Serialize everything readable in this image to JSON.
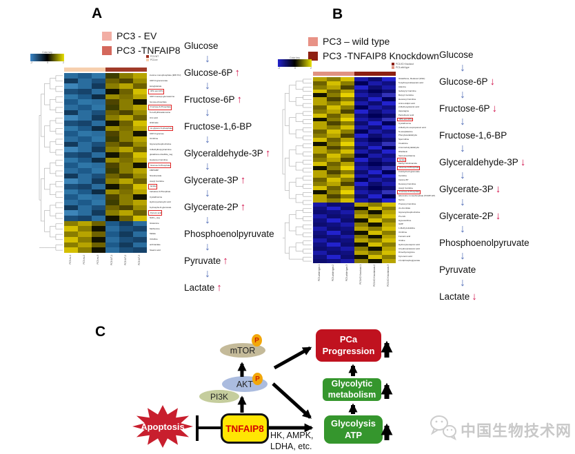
{
  "panelA": {
    "letter": "A",
    "legend": [
      {
        "color": "#f2aea4",
        "label": "PC3 - EV"
      },
      {
        "color": "#d4685c",
        "label": "PC3 -TNFAIP8"
      }
    ],
    "color_key": {
      "title": "Color key",
      "ticks": [
        "-2",
        "0",
        "2"
      ],
      "gradient": [
        "#3a86c8",
        "#000000",
        "#e8e000"
      ]
    },
    "mini_legend": [
      {
        "color": "#9e3020",
        "label": "PC3-WT"
      },
      {
        "color": "#f6cfae",
        "label": "PC3-ev"
      }
    ],
    "column_band": [
      "#f6cfae",
      "#a03a28"
    ],
    "column_labels": [
      "PC3-ev-1",
      "PC3-ev-2",
      "PC3-ev-3",
      "PC3-WT-1",
      "PC3-WT-2",
      "PC3-WT-3"
    ],
    "palettes": {
      "a1": [
        "#2a6d9e",
        "#1d5a8a",
        "#2f77a8",
        "#3d3d00",
        "#8a7d00",
        "#b7a400"
      ],
      "a2": [
        "#123a5c",
        "#2a6d9e",
        "#1b4f7a",
        "#6e6200",
        "#4d4400",
        "#9a8c00"
      ],
      "a3": [
        "#3d85b8",
        "#2a6d9e",
        "#123a5c",
        "#8a7d00",
        "#b7a400",
        "#6e6200"
      ],
      "a4": [
        "#1b4f7a",
        "#16436b",
        "#2a6d9e",
        "#141400",
        "#6e6200",
        "#d4bf00"
      ],
      "a5": [
        "#2f77a8",
        "#1d5a8a",
        "#0d2c45",
        "#9a8c00",
        "#7d7000",
        "#b7a400"
      ],
      "a6": [
        "#1d5a8a",
        "#2f77a8",
        "#2a6d9e",
        "#4d4400",
        "#8a7d00",
        "#141400"
      ],
      "a7": [
        "#8a7d00",
        "#b7a400",
        "#6e6200",
        "#1d5a8a",
        "#123a5c",
        "#2a6d9e"
      ],
      "a8": [
        "#d4bf00",
        "#8a7d00",
        "#141400",
        "#2a6d9e",
        "#1b4f7a",
        "#16436b"
      ]
    },
    "rows": [
      {
        "label": "inosine monophosphate (IMP-5'U)",
        "p": "a1",
        "boxed": false
      },
      {
        "label": "UDP-D-glucuronate",
        "p": "a2",
        "boxed": false
      },
      {
        "label": "ketoglutarate",
        "p": "a3",
        "boxed": false
      },
      {
        "label": "3PG and 2PG",
        "p": "a4",
        "boxed": true
      },
      {
        "label": "UDP-N-acetyl-glucosamine",
        "p": "a5",
        "boxed": false
      },
      {
        "label": "hexose-phosphate",
        "p": "a6",
        "boxed": false
      },
      {
        "label": "Fructose-6-Phosphate",
        "p": "a1",
        "boxed": true
      },
      {
        "label": "5-methylthioadenosine",
        "p": "a2",
        "boxed": false
      },
      {
        "label": "Uric acid",
        "p": "a3",
        "boxed": false
      },
      {
        "label": "shikimate",
        "p": "a4",
        "boxed": false
      },
      {
        "label": "sn-glycerol 3-phosphate",
        "p": "a5",
        "boxed": true
      },
      {
        "label": "UDP-D-glucose",
        "p": "a6",
        "boxed": false
      },
      {
        "label": "Ornithine",
        "p": "a1",
        "boxed": false
      },
      {
        "label": "Glycerophosphocholine",
        "p": "a2",
        "boxed": false
      },
      {
        "label": "3-Methylbutyrylcarnitine",
        "p": "a3",
        "boxed": false
      },
      {
        "label": "glutathione disulfide_neg",
        "p": "a4",
        "boxed": false
      },
      {
        "label": "Heptanoyl Carnitine",
        "p": "a5",
        "boxed": false
      },
      {
        "label": "Glucose-6-Phosphate",
        "p": "a6",
        "boxed": true
      },
      {
        "label": "FBP/GBP",
        "p": "a1",
        "boxed": false
      },
      {
        "label": "Nicotinamide",
        "p": "a2",
        "boxed": false
      },
      {
        "label": "Acetyl Carnitine",
        "p": "a3",
        "boxed": false
      },
      {
        "label": "lactate",
        "p": "a4",
        "boxed": true
      },
      {
        "label": "trehalose-6-Phosphate",
        "p": "a5",
        "boxed": false
      },
      {
        "label": "Cystathionine",
        "p": "a6",
        "boxed": false
      },
      {
        "label": "Hydroxyoctanoylic acid",
        "p": "a1",
        "boxed": false
      },
      {
        "label": "6-phospho-D-gluconate",
        "p": "a2",
        "boxed": false
      },
      {
        "label": "Pyruvic acid",
        "p": "a3",
        "boxed": true
      },
      {
        "label": "NAD+_neg",
        "p": "a4",
        "boxed": false
      },
      {
        "label": "Glutamine",
        "p": "a7",
        "boxed": false
      },
      {
        "label": "Methionine",
        "p": "a8",
        "boxed": false
      },
      {
        "label": "Malate",
        "p": "a7",
        "boxed": false
      },
      {
        "label": "Citrulline",
        "p": "a8",
        "boxed": false
      },
      {
        "label": "anthranilate",
        "p": "a7",
        "boxed": false
      },
      {
        "label": "Stearic acid",
        "p": "a8",
        "boxed": false
      }
    ],
    "pathway": [
      {
        "name": "Glucose",
        "change": null
      },
      {
        "name": "Glucose-6P",
        "change": "up"
      },
      {
        "name": "Fructose-6P",
        "change": "up"
      },
      {
        "name": "Fructose-1,6-BP",
        "change": null
      },
      {
        "name": "Glyceraldehyde-3P",
        "change": "up"
      },
      {
        "name": "Glycerate-3P",
        "change": "up"
      },
      {
        "name": "Glycerate-2P",
        "change": "up"
      },
      {
        "name": "Phosphoenolpyruvate",
        "change": null
      },
      {
        "name": "Pyruvate",
        "change": "up"
      },
      {
        "name": "Lactate",
        "change": "up"
      }
    ]
  },
  "panelB": {
    "letter": "B",
    "legend": [
      {
        "color": "#e89286",
        "label": "PC3 – wild type"
      },
      {
        "color": "#8e2012",
        "label": "PC3 -TNFAIP8 Knockdown"
      }
    ],
    "color_key": {
      "title": "Color key",
      "ticks": [
        "-2",
        "0",
        "2"
      ],
      "gradient": [
        "#2222cc",
        "#000000",
        "#e8e000"
      ]
    },
    "mini_legend": [
      {
        "color": "#8c2012",
        "label": "PC3-KD Knockout"
      },
      {
        "color": "#e09280",
        "label": "PC3-wild type"
      }
    ],
    "column_band": [
      "#e09280",
      "#8c2012"
    ],
    "column_labels": [
      "PC3-wilde type-1",
      "PC3-wilde type-2",
      "PC3-wilde type-3",
      "PC3-KD Knockout-1",
      "PC3-KD Knockdown-2",
      "PC3-KD Knockdown-3"
    ],
    "palettes": {
      "b1": [
        "#b7a400",
        "#8a7d00",
        "#d4bf00",
        "#1a1aa8",
        "#0d0d70",
        "#2222cc"
      ],
      "b2": [
        "#6e6200",
        "#d4bf00",
        "#8a7d00",
        "#000058",
        "#1a1aa8",
        "#101080"
      ],
      "b3": [
        "#8a7d00",
        "#b7a400",
        "#4d4400",
        "#2222cc",
        "#0d0d70",
        "#1a1aa8"
      ],
      "b4": [
        "#d4bf00",
        "#6e6200",
        "#b7a400",
        "#101080",
        "#000058",
        "#0d0d70"
      ],
      "b5": [
        "#141400",
        "#8a7d00",
        "#e8d200",
        "#1a1aa8",
        "#101080",
        "#3333b8"
      ],
      "b6": [
        "#b7a400",
        "#4d4400",
        "#8a7d00",
        "#0d0d70",
        "#2222cc",
        "#000058"
      ],
      "b7": [
        "#1a1aa8",
        "#0d0d70",
        "#101080",
        "#b7a400",
        "#8a7d00",
        "#d4bf00"
      ],
      "b8": [
        "#101080",
        "#2222cc",
        "#0d0d70",
        "#141400",
        "#d4bf00",
        "#8a7d00"
      ],
      "b9": [
        "#0d0d70",
        "#101080",
        "#1a1aa8",
        "#8a7d00",
        "#141400",
        "#b7a400"
      ]
    },
    "rows": [
      {
        "label": "Glutathione, Reduced (GSH)",
        "p": "b1",
        "boxed": false
      },
      {
        "label": "5-Hydroxyindoleacetic acid",
        "p": "b2",
        "boxed": false
      },
      {
        "label": "Adenine",
        "p": "b3",
        "boxed": false
      },
      {
        "label": "Isobutyryl Carnitine",
        "p": "b4",
        "boxed": false
      },
      {
        "label": "Butyryl Carnitine",
        "p": "b5",
        "boxed": false
      },
      {
        "label": "Hexanoyl Carnitine",
        "p": "b6",
        "boxed": false
      },
      {
        "label": "Amino Adipic acid",
        "p": "b1",
        "boxed": false
      },
      {
        "label": "2-Methyl-glutamic acid",
        "p": "b2",
        "boxed": false
      },
      {
        "label": "Asparagine",
        "p": "b3",
        "boxed": false
      },
      {
        "label": "Pantothenic acid",
        "p": "b4",
        "boxed": false
      },
      {
        "label": "3PG and 2PG",
        "p": "b5",
        "boxed": true
      },
      {
        "label": "Cystathionine",
        "p": "b6",
        "boxed": false
      },
      {
        "label": "2-Methyl-3-oxopropanoic acid",
        "p": "b1",
        "boxed": false
      },
      {
        "label": "N-acetylalanine",
        "p": "b2",
        "boxed": false
      },
      {
        "label": "Phenylacetaldehyde",
        "p": "b3",
        "boxed": false
      },
      {
        "label": "Spermidine",
        "p": "b4",
        "boxed": false
      },
      {
        "label": "Creatinine",
        "p": "b5",
        "boxed": false
      },
      {
        "label": "2-Aminobutyraldehyde",
        "p": "b6",
        "boxed": false
      },
      {
        "label": "Riboflavin",
        "p": "b1",
        "boxed": false
      },
      {
        "label": "Sarcosine/Alanine",
        "p": "b2",
        "boxed": false
      },
      {
        "label": "lactate",
        "p": "b3",
        "boxed": true
      },
      {
        "label": "Methyl Nicotinamide",
        "p": "b4",
        "boxed": false
      },
      {
        "label": "Glucose-6-Phosphate",
        "p": "b5",
        "boxed": true
      },
      {
        "label": "2-dehydro-D-gluconate",
        "p": "b6",
        "boxed": false
      },
      {
        "label": "Carnitine",
        "p": "b1",
        "boxed": false
      },
      {
        "label": "Inosine-5P",
        "p": "b2",
        "boxed": false
      },
      {
        "label": "Decanoyl Carnitine",
        "p": "b3",
        "boxed": false
      },
      {
        "label": "Acetyl Carnitine",
        "p": "b4",
        "boxed": false
      },
      {
        "label": "Fructose-6-Phosphate",
        "p": "b5",
        "boxed": true
      },
      {
        "label": "adenosine monophosphate (5'UMP-GP)",
        "p": "b6",
        "boxed": false
      },
      {
        "label": "Serine",
        "p": "b1",
        "boxed": false
      },
      {
        "label": "Propionyl Carnitine",
        "p": "b7",
        "boxed": false
      },
      {
        "label": "cis-Aconitate",
        "p": "b8",
        "boxed": false
      },
      {
        "label": "Glycerophosphocholine",
        "p": "b9",
        "boxed": false
      },
      {
        "label": "Pro-Gln",
        "p": "b7",
        "boxed": false
      },
      {
        "label": "Hypoxanthine",
        "p": "b8",
        "boxed": false
      },
      {
        "label": "GMP",
        "p": "b9",
        "boxed": false
      },
      {
        "label": "1-Methyl-Histidine",
        "p": "b7",
        "boxed": false
      },
      {
        "label": "Ornithine",
        "p": "b8",
        "boxed": false
      },
      {
        "label": "Fumaric acid",
        "p": "b9",
        "boxed": false
      },
      {
        "label": "Uridine",
        "p": "b7",
        "boxed": false
      },
      {
        "label": "Hydroxyisocaproic acid",
        "p": "b8",
        "boxed": false
      },
      {
        "label": "3-hydroxybutanoic acid",
        "p": "b9",
        "boxed": false
      },
      {
        "label": "Dimethyl-Arginine",
        "p": "b7",
        "boxed": false
      },
      {
        "label": "Kynurenic acid",
        "p": "b8",
        "boxed": false
      },
      {
        "label": "2,3-diphosphoglycerate",
        "p": "b9",
        "boxed": false
      }
    ],
    "pathway": [
      {
        "name": "Glucose",
        "change": null
      },
      {
        "name": "Glucose-6P",
        "change": "down"
      },
      {
        "name": "Fructose-6P",
        "change": "down"
      },
      {
        "name": "Fructose-1,6-BP",
        "change": null
      },
      {
        "name": "Glyceraldehyde-3P",
        "change": "down"
      },
      {
        "name": "Glycerate-3P",
        "change": "down"
      },
      {
        "name": "Glycerate-2P",
        "change": "down"
      },
      {
        "name": "Phosphoenolpyruvate",
        "change": null
      },
      {
        "name": "Pyruvate",
        "change": null
      },
      {
        "name": "Lactate",
        "change": "down"
      }
    ]
  },
  "pathway_style": {
    "down_arrow_color": "#5570b8",
    "change_arrow_color": "#d1104a"
  },
  "panelC": {
    "letter": "C",
    "mtor": "mTOR",
    "akt": "AKT",
    "pi3k": "PI3K",
    "tnfaip8": "TNFAIP8",
    "apoptosis": "Apoptosis",
    "phospho": "P",
    "pca_line1": "PCa",
    "pca_line2": "Progression",
    "glycolytic_line1": "Glycolytic",
    "glycolytic_line2": "metabolism",
    "atp_line1": "Glycolysis",
    "atp_line2": "ATP",
    "enzymes_line1": "HK, AMPK,",
    "enzymes_line2": "LDHA, etc.",
    "colors": {
      "mtor": "#c4ba99",
      "akt": "#abbcdf",
      "pi3k": "#c5cd9d",
      "p_badge": "#f2a70a",
      "p_text": "#cc2200",
      "tnfaip8_bg": "#ffe603",
      "tnfaip8_text": "#d40000",
      "apoptosis": "#c81f2e",
      "pca": "#c0121f",
      "green": "#35962d",
      "arrow": "#000000"
    }
  },
  "watermark": {
    "text": "中国生物技术网"
  }
}
